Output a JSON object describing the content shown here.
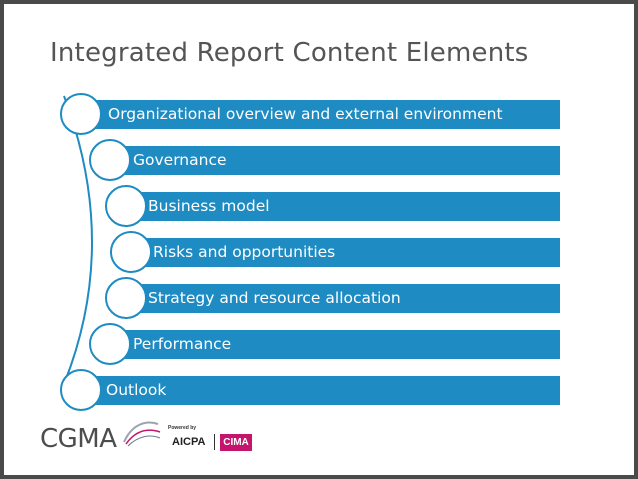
{
  "slide": {
    "title": "Integrated Report Content Elements",
    "elements": [
      {
        "label": "Organizational overview and external environment"
      },
      {
        "label": "Governance"
      },
      {
        "label": "Business model"
      },
      {
        "label": "Risks and opportunities"
      },
      {
        "label": "Strategy and resource allocation"
      },
      {
        "label": "Performance"
      },
      {
        "label": "Outlook"
      }
    ]
  },
  "footer": {
    "logo_text": "CGMA",
    "powered_by": "Powered by",
    "partner_1": "AICPA",
    "partner_2": "CIMA"
  },
  "colors": {
    "bar": "#1e8bc3",
    "title": "#555555",
    "cima": "#c4146b"
  }
}
